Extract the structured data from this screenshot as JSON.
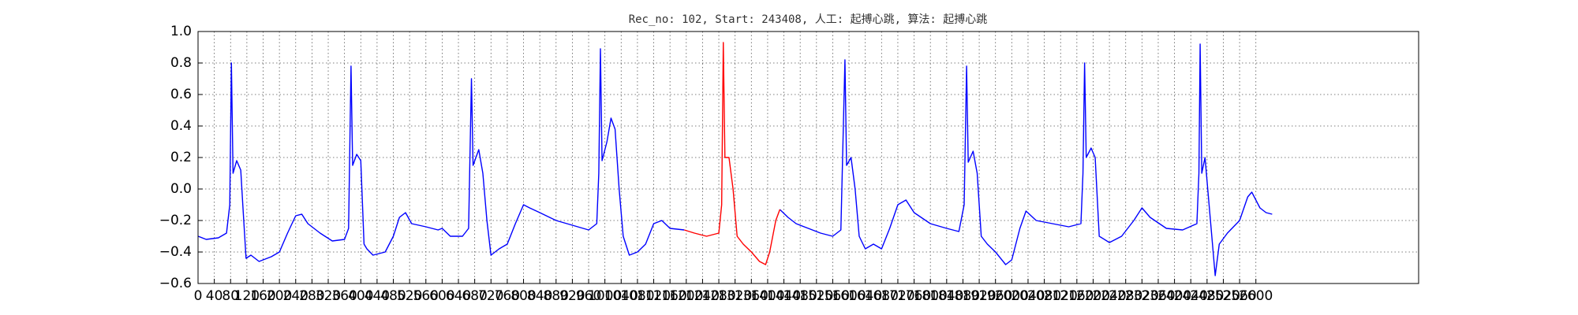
{
  "chart_data": {
    "type": "line",
    "title": "Rec_no: 102, Start: 243408, 人工: 起搏心跳, 算法: 起搏心跳",
    "xlim": [
      0,
      3000
    ],
    "xticks": [
      0,
      40,
      80,
      120,
      160,
      200,
      240,
      280,
      320,
      360,
      400,
      440,
      480,
      520,
      560,
      600,
      640,
      680,
      720,
      760,
      800,
      840,
      880,
      920,
      960,
      1000,
      1040,
      1080,
      1120,
      1160,
      1200,
      1240,
      1280,
      1320,
      1360,
      1400,
      1440,
      1480,
      1520,
      1560,
      1600,
      1640,
      1680,
      1720,
      1760,
      1800,
      1840,
      1880,
      1920,
      1960,
      2000,
      2040,
      2080,
      2120,
      2160,
      2200,
      2240,
      2280,
      2320,
      2360,
      2400,
      2440,
      2480,
      2520,
      2560,
      2600
    ],
    "ylim": [
      -0.6,
      1.0
    ],
    "yticks": [
      {
        "value": -0.6,
        "label": "−0.6"
      },
      {
        "value": -0.4,
        "label": "−0.4"
      },
      {
        "value": -0.2,
        "label": "−0.2"
      },
      {
        "value": 0,
        "label": "0.0"
      },
      0.2,
      0.4,
      0.6,
      0.8,
      {
        "value": 1,
        "label": "1.0"
      }
    ],
    "grid": true,
    "series": [
      {
        "color": "#0000ff",
        "x": [
          0,
          20,
          50,
          70,
          78,
          82,
          86,
          95,
          105,
          110,
          118,
          130,
          150,
          180,
          200,
          220,
          240,
          255,
          270,
          300,
          330,
          360,
          370,
          376,
          380,
          390,
          400,
          408,
          415,
          430,
          460,
          480,
          495,
          510,
          525,
          560,
          590,
          600,
          620,
          650,
          665,
          672,
          676,
          690,
          700,
          710,
          720,
          740,
          760,
          780,
          800,
          815,
          840,
          880,
          920,
          960,
          980,
          985,
          989,
          993,
          1005,
          1015,
          1025,
          1035,
          1045,
          1060,
          1080,
          1100,
          1120,
          1140,
          1160,
          1195,
          1300,
          1430,
          1450,
          1470,
          1500,
          1530,
          1560,
          1580,
          1590,
          1594,
          1605,
          1615,
          1625,
          1640,
          1660,
          1680,
          1700,
          1720,
          1740,
          1760,
          1800,
          1840,
          1870,
          1883,
          1889,
          1893,
          1905,
          1915,
          1925,
          1940,
          1960,
          1985,
          2000,
          2020,
          2035,
          2060,
          2100,
          2140,
          2170,
          2175,
          2179,
          2183,
          2195,
          2205,
          2215,
          2240,
          2270,
          2300,
          2320,
          2340,
          2380,
          2420,
          2455,
          2460,
          2463,
          2467,
          2475,
          2485,
          2500,
          2510,
          2530,
          2560,
          2580,
          2590,
          2610,
          2625,
          2640
        ],
        "values": [
          -0.3,
          -0.32,
          -0.31,
          -0.28,
          -0.1,
          0.8,
          0.1,
          0.18,
          0.12,
          -0.1,
          -0.44,
          -0.42,
          -0.46,
          -0.43,
          -0.4,
          -0.28,
          -0.17,
          -0.16,
          -0.22,
          -0.28,
          -0.33,
          -0.32,
          -0.25,
          0.78,
          0.15,
          0.22,
          0.18,
          -0.35,
          -0.38,
          -0.42,
          -0.4,
          -0.3,
          -0.18,
          -0.15,
          -0.22,
          -0.24,
          -0.26,
          -0.25,
          -0.3,
          -0.3,
          -0.25,
          0.7,
          0.15,
          0.25,
          0.1,
          -0.2,
          -0.42,
          -0.38,
          -0.35,
          -0.22,
          -0.1,
          -0.12,
          -0.15,
          -0.2,
          -0.23,
          -0.26,
          -0.22,
          0.1,
          0.89,
          0.18,
          0.3,
          0.45,
          0.38,
          0.0,
          -0.3,
          -0.42,
          -0.4,
          -0.35,
          -0.22,
          -0.2,
          -0.25,
          -0.26,
          null,
          -0.13,
          -0.18,
          -0.22,
          -0.25,
          -0.28,
          -0.3,
          -0.26,
          0.82,
          0.15,
          0.2,
          0.0,
          -0.3,
          -0.38,
          -0.35,
          -0.38,
          -0.25,
          -0.1,
          -0.07,
          -0.15,
          -0.22,
          -0.25,
          -0.27,
          -0.1,
          0.78,
          0.17,
          0.24,
          0.1,
          -0.3,
          -0.35,
          -0.4,
          -0.48,
          -0.45,
          -0.25,
          -0.14,
          -0.2,
          -0.22,
          -0.24,
          -0.22,
          0.1,
          0.8,
          0.2,
          0.26,
          0.2,
          -0.3,
          -0.34,
          -0.3,
          -0.2,
          -0.12,
          -0.18,
          -0.25,
          -0.26,
          -0.22,
          0.1,
          0.92,
          0.1,
          0.2,
          -0.1,
          -0.55,
          -0.35,
          -0.28,
          -0.2,
          -0.05,
          -0.02,
          -0.12,
          -0.15,
          -0.16
        ]
      },
      {
        "color": "#ff0000",
        "x": [
          1195,
          1220,
          1250,
          1280,
          1287,
          1291,
          1295,
          1305,
          1315,
          1325,
          1340,
          1360,
          1380,
          1395,
          1405,
          1420,
          1430
        ],
        "values": [
          -0.26,
          -0.28,
          -0.3,
          -0.28,
          -0.1,
          0.93,
          0.2,
          0.2,
          0.0,
          -0.3,
          -0.35,
          -0.4,
          -0.46,
          -0.48,
          -0.4,
          -0.2,
          -0.13
        ]
      }
    ]
  }
}
